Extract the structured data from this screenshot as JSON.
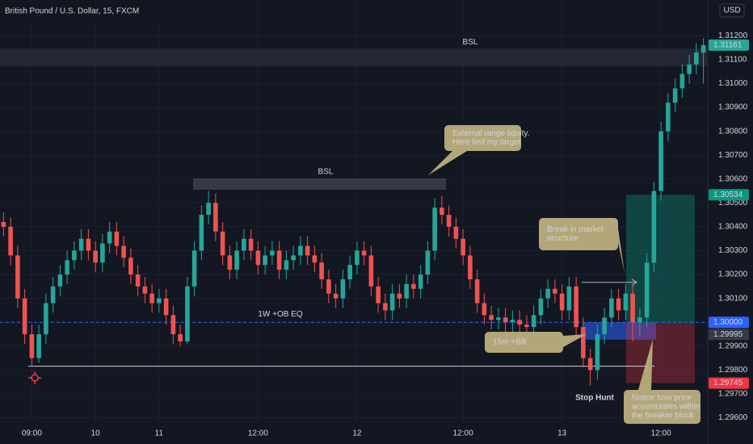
{
  "chart_data": {
    "type": "candlestick",
    "title": "British Pound / U.S. Dollar, 15, FXCM",
    "currency": "USD",
    "up_color": "#26a69a",
    "down_color": "#ef5350",
    "ylim": [
      1.2949,
      1.3135
    ],
    "yticks": [
      {
        "value": 1.296,
        "label": "1.29600"
      },
      {
        "value": 1.297,
        "label": "1.29700"
      },
      {
        "value": 1.298,
        "label": "1.29800"
      },
      {
        "value": 1.299,
        "label": "1.29900"
      },
      {
        "value": 1.3,
        "label": "1.30000"
      },
      {
        "value": 1.301,
        "label": "1.30100"
      },
      {
        "value": 1.302,
        "label": "1.30200"
      },
      {
        "value": 1.303,
        "label": "1.30300"
      },
      {
        "value": 1.304,
        "label": "1.30400"
      },
      {
        "value": 1.305,
        "label": "1.30500"
      },
      {
        "value": 1.306,
        "label": "1.30600"
      },
      {
        "value": 1.307,
        "label": "1.30700"
      },
      {
        "value": 1.308,
        "label": "1.30800"
      },
      {
        "value": 1.309,
        "label": "1.30900"
      },
      {
        "value": 1.31,
        "label": "1.31000"
      },
      {
        "value": 1.311,
        "label": "1.31100"
      },
      {
        "value": 1.312,
        "label": "1.31200"
      }
    ],
    "grid": true,
    "categories": [
      null,
      null,
      null,
      null,
      "09:00",
      null,
      null,
      null,
      null,
      null,
      null,
      null,
      null,
      "10",
      null,
      null,
      null,
      null,
      null,
      null,
      null,
      null,
      "11",
      null,
      null,
      null,
      null,
      null,
      null,
      null,
      null,
      null,
      null,
      null,
      null,
      null,
      "12:00",
      null,
      null,
      null,
      null,
      null,
      null,
      null,
      null,
      null,
      null,
      null,
      null,
      null,
      "12",
      null,
      null,
      null,
      null,
      null,
      null,
      null,
      null,
      null,
      null,
      null,
      null,
      null,
      null,
      "12:00",
      null,
      null,
      null,
      null,
      null,
      null,
      null,
      null,
      null,
      null,
      null,
      null,
      null,
      "13",
      null,
      null,
      null,
      null,
      null,
      null,
      null,
      null,
      null,
      null,
      null,
      null,
      null,
      "12:00",
      null,
      null,
      null,
      null,
      null,
      null
    ],
    "open": [
      1.3042,
      1.304,
      1.3028,
      1.301,
      1.2995,
      1.2985,
      1.2995,
      1.3008,
      1.3015,
      1.302,
      1.3026,
      1.303,
      1.3035,
      1.303,
      1.3025,
      1.3033,
      1.3038,
      1.3032,
      1.3027,
      1.302,
      1.3015,
      1.3012,
      1.3008,
      1.301,
      1.3003,
      1.2995,
      1.2992,
      1.3015,
      1.303,
      1.3045,
      1.305,
      1.3038,
      1.3028,
      1.3022,
      1.303,
      1.3035,
      1.303,
      1.3024,
      1.3028,
      1.303,
      1.3022,
      1.3026,
      1.3028,
      1.3032,
      1.3028,
      1.3025,
      1.3018,
      1.3012,
      1.301,
      1.3018,
      1.3024,
      1.303,
      1.3028,
      1.3015,
      1.3008,
      1.3005,
      1.3012,
      1.301,
      1.3016,
      1.3014,
      1.302,
      1.303,
      1.3048,
      1.3045,
      1.304,
      1.3035,
      1.3028,
      1.3018,
      1.3008,
      1.3003,
      1.3001,
      1.3002,
      1.3,
      1.3001,
      1.2999,
      1.2998,
      1.3003,
      1.301,
      1.3014,
      1.3012,
      1.3005,
      1.3015,
      1.2998,
      1.2985,
      1.298,
      1.2995,
      1.3002,
      1.301,
      1.3005,
      1.3012,
      1.3,
      1.3002,
      1.3025,
      1.3055,
      1.308,
      1.3092,
      1.3098,
      1.3104,
      1.3108,
      1.3113
    ],
    "high": [
      1.3046,
      1.3044,
      1.3032,
      1.3014,
      1.2999,
      1.2999,
      1.3012,
      1.3019,
      1.3024,
      1.303,
      1.3034,
      1.3039,
      1.3039,
      1.3034,
      1.3037,
      1.3042,
      1.3042,
      1.3036,
      1.3031,
      1.3024,
      1.3019,
      1.3016,
      1.3014,
      1.3014,
      1.3007,
      1.2999,
      1.3019,
      1.3034,
      1.3049,
      1.3055,
      1.3054,
      1.3042,
      1.3032,
      1.3034,
      1.3039,
      1.3039,
      1.3034,
      1.3032,
      1.3034,
      1.3034,
      1.303,
      1.3032,
      1.3036,
      1.3036,
      1.3032,
      1.3029,
      1.3022,
      1.3016,
      1.3022,
      1.3028,
      1.3034,
      1.3034,
      1.3032,
      1.3019,
      1.3012,
      1.3016,
      1.3016,
      1.302,
      1.302,
      1.3024,
      1.3034,
      1.3052,
      1.3053,
      1.3049,
      1.3044,
      1.3039,
      1.3032,
      1.3022,
      1.3012,
      1.3007,
      1.3006,
      1.3006,
      1.3005,
      1.3005,
      1.3003,
      1.3007,
      1.3014,
      1.3018,
      1.3018,
      1.3016,
      1.3019,
      1.3019,
      1.3002,
      1.2989,
      1.2999,
      1.3006,
      1.3014,
      1.3014,
      1.3016,
      1.3016,
      1.3006,
      1.3029,
      1.3059,
      1.3084,
      1.3096,
      1.3102,
      1.3108,
      1.3112,
      1.3117,
      1.3119
    ],
    "low": [
      1.3036,
      1.3024,
      1.3006,
      1.2991,
      1.2982,
      1.2983,
      1.2991,
      1.3004,
      1.3011,
      1.3016,
      1.3022,
      1.3026,
      1.3026,
      1.3021,
      1.3021,
      1.3029,
      1.3028,
      1.3023,
      1.3016,
      1.3011,
      1.3008,
      1.3004,
      1.3004,
      1.2999,
      1.2991,
      1.299,
      1.2991,
      1.3011,
      1.3026,
      1.3041,
      1.3034,
      1.3024,
      1.3018,
      1.3018,
      1.3026,
      1.3026,
      1.302,
      1.302,
      1.3024,
      1.3018,
      1.3018,
      1.3022,
      1.3024,
      1.3024,
      1.3021,
      1.3014,
      1.3008,
      1.3006,
      1.3006,
      1.3014,
      1.302,
      1.3024,
      1.3011,
      1.3004,
      1.3001,
      1.3001,
      1.3006,
      1.3006,
      1.301,
      1.301,
      1.3016,
      1.3026,
      1.3041,
      1.3036,
      1.3031,
      1.3024,
      1.3014,
      1.3004,
      1.2999,
      1.2997,
      1.2997,
      1.2996,
      1.2996,
      1.2995,
      1.2994,
      1.2994,
      1.2999,
      1.3006,
      1.3008,
      1.3001,
      1.3001,
      1.2994,
      1.2981,
      1.29735,
      1.2976,
      1.2991,
      1.2998,
      1.3001,
      1.3001,
      1.2992,
      1.2994,
      1.2998,
      1.3021,
      1.3051,
      1.3076,
      1.3088,
      1.3094,
      1.31,
      1.3104,
      1.31
    ],
    "close": [
      1.304,
      1.3028,
      1.301,
      1.2995,
      1.2985,
      1.2995,
      1.3008,
      1.3015,
      1.302,
      1.3026,
      1.303,
      1.3035,
      1.303,
      1.3025,
      1.3033,
      1.3038,
      1.3032,
      1.3027,
      1.302,
      1.3015,
      1.3012,
      1.3008,
      1.301,
      1.3003,
      1.2995,
      1.2992,
      1.3015,
      1.303,
      1.3045,
      1.305,
      1.3038,
      1.3028,
      1.3022,
      1.303,
      1.3035,
      1.303,
      1.3024,
      1.3028,
      1.303,
      1.3022,
      1.3026,
      1.3028,
      1.3032,
      1.3028,
      1.3025,
      1.3018,
      1.3012,
      1.301,
      1.3018,
      1.3024,
      1.303,
      1.3028,
      1.3015,
      1.3008,
      1.3005,
      1.3012,
      1.301,
      1.3016,
      1.3014,
      1.302,
      1.303,
      1.3048,
      1.3045,
      1.304,
      1.3035,
      1.3028,
      1.3018,
      1.3008,
      1.3003,
      1.3001,
      1.3002,
      1.3,
      1.3001,
      1.2999,
      1.2998,
      1.3003,
      1.301,
      1.3014,
      1.3012,
      1.3005,
      1.3015,
      1.2998,
      1.2985,
      1.298,
      1.2995,
      1.3002,
      1.301,
      1.3005,
      1.3012,
      1.3,
      1.3002,
      1.3025,
      1.3055,
      1.308,
      1.3092,
      1.3098,
      1.3104,
      1.3108,
      1.3113,
      1.31161
    ],
    "zones": [
      {
        "label": "BSL",
        "top": 1.31146,
        "bottom": 1.31072,
        "color": "#2a2e39"
      },
      {
        "label": "BSL",
        "top": 1.30603,
        "bottom": 1.30555,
        "color": "#434651"
      },
      {
        "top": 1.3,
        "bottom": 1.29927,
        "color": "#2962ff"
      }
    ],
    "levels": [
      {
        "label": "1W +OB EQ",
        "value": 1.3,
        "color": "#2962ff"
      },
      {
        "value": 1.29816,
        "color": "#d1d4dc"
      },
      {
        "value": 1.30167,
        "color": "#b2b5be"
      }
    ],
    "position": {
      "target": 1.30534,
      "entry": 1.29995,
      "stop": 1.29745
    },
    "price_labels": [
      {
        "value": 1.31161,
        "label": "1.31161",
        "color": "#26a69a"
      },
      {
        "value": 1.30534,
        "label": "1.30534",
        "color": "#089981"
      },
      {
        "value": 1.3,
        "label": "1.30000",
        "color": "#2962ff"
      },
      {
        "value": 1.29995,
        "label": "1.29995",
        "color": "#363a45"
      },
      {
        "value": 1.29745,
        "label": "1.29745",
        "color": "#f23645"
      }
    ],
    "callouts": [
      {
        "lines": [
          "External range liquity.",
          "Here lied my target"
        ]
      },
      {
        "lines": [
          "Break in market",
          "structure"
        ]
      },
      {
        "lines": [
          "15m +BB"
        ]
      },
      {
        "lines": [
          "Notice how price",
          "accumulates within",
          "the breaker block"
        ]
      }
    ],
    "stop_hunt": "Stop Hunt"
  }
}
